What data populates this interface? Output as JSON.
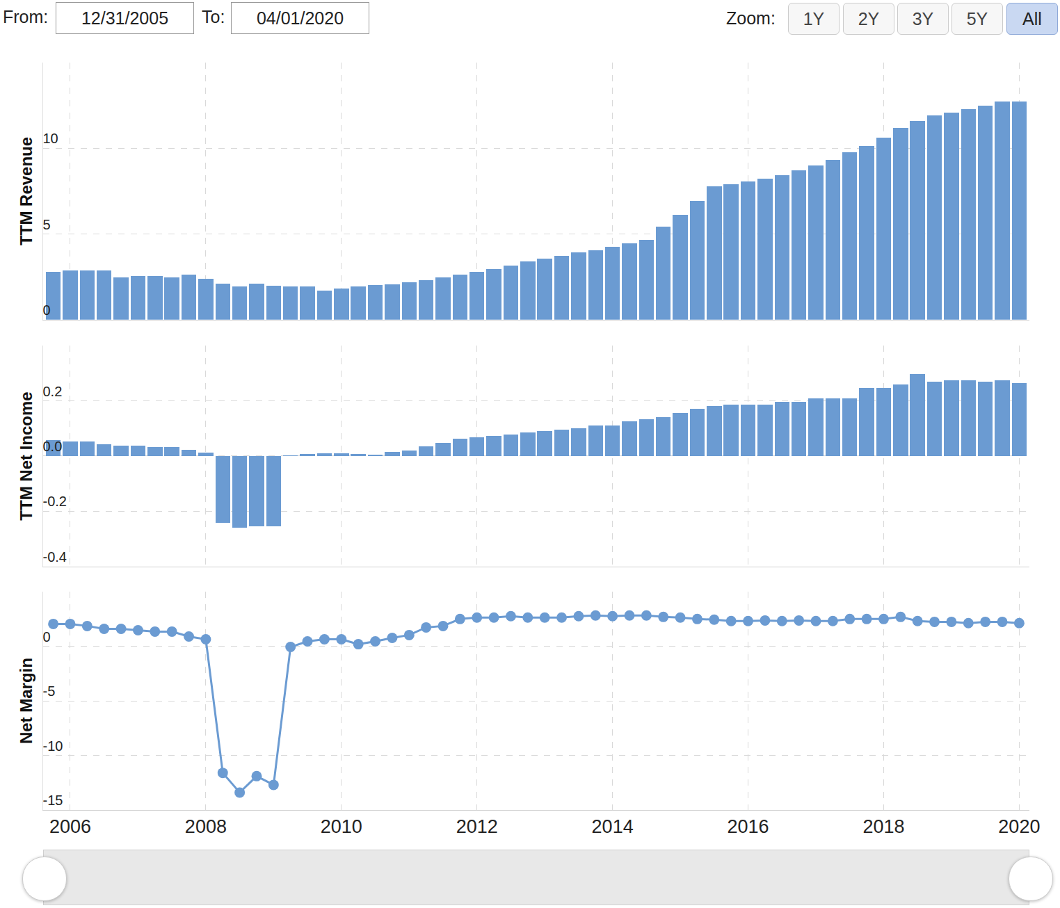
{
  "controls": {
    "from_label": "From:",
    "from": "12/31/2005",
    "to_label": "To:",
    "to": "04/01/2020",
    "zoom_label": "Zoom:",
    "zoom_buttons": [
      "1Y",
      "2Y",
      "3Y",
      "5Y",
      "All"
    ],
    "zoom_selected": "All"
  },
  "chart_data": [
    {
      "type": "bar",
      "ylabel": "TTM Revenue",
      "color": "#6b9bd2",
      "grid": true,
      "tick_labels": "y",
      "x": [
        2005.75,
        2006,
        2006.25,
        2006.5,
        2006.75,
        2007,
        2007.25,
        2007.5,
        2007.75,
        2008,
        2008.25,
        2008.5,
        2008.75,
        2009,
        2009.25,
        2009.5,
        2009.75,
        2010,
        2010.25,
        2010.5,
        2010.75,
        2011,
        2011.25,
        2011.5,
        2011.75,
        2012,
        2012.25,
        2012.5,
        2012.75,
        2013,
        2013.25,
        2013.5,
        2013.75,
        2014,
        2014.25,
        2014.5,
        2014.75,
        2015,
        2015.25,
        2015.5,
        2015.75,
        2016,
        2016.25,
        2016.5,
        2016.75,
        2017,
        2017.25,
        2017.5,
        2017.75,
        2018,
        2018.25,
        2018.5,
        2018.75,
        2019,
        2019.25,
        2019.5,
        2019.75,
        2020
      ],
      "values": [
        2.78,
        2.86,
        2.86,
        2.86,
        2.45,
        2.53,
        2.53,
        2.45,
        2.61,
        2.37,
        2.12,
        1.92,
        2.12,
        1.96,
        1.92,
        1.92,
        1.71,
        1.8,
        1.92,
        2.0,
        2.08,
        2.2,
        2.29,
        2.45,
        2.61,
        2.78,
        2.94,
        3.14,
        3.39,
        3.55,
        3.71,
        3.92,
        4.04,
        4.24,
        4.45,
        4.65,
        5.43,
        6.12,
        6.94,
        7.76,
        7.92,
        8.08,
        8.24,
        8.41,
        8.73,
        8.98,
        9.31,
        9.76,
        10.12,
        10.61,
        11.18,
        11.59,
        11.92,
        12.08,
        12.29,
        12.49,
        12.73,
        12.73
      ],
      "xlim": [
        2005.6,
        2020.15
      ],
      "xticks": [
        2006,
        2008,
        2010,
        2012,
        2014,
        2016,
        2018,
        2020
      ],
      "ylim": [
        0,
        15
      ],
      "yticks": [
        0,
        5,
        10
      ]
    },
    {
      "type": "bar",
      "ylabel": "TTM Net Income",
      "color": "#6b9bd2",
      "grid": true,
      "tick_labels": "y",
      "x": [
        2005.75,
        2006,
        2006.25,
        2006.5,
        2006.75,
        2007,
        2007.25,
        2007.5,
        2007.75,
        2008,
        2008.25,
        2008.5,
        2008.75,
        2009,
        2009.25,
        2009.5,
        2009.75,
        2010,
        2010.25,
        2010.5,
        2010.75,
        2011,
        2011.25,
        2011.5,
        2011.75,
        2012,
        2012.25,
        2012.5,
        2012.75,
        2013,
        2013.25,
        2013.5,
        2013.75,
        2014,
        2014.25,
        2014.5,
        2014.75,
        2015,
        2015.25,
        2015.5,
        2015.75,
        2016,
        2016.25,
        2016.5,
        2016.75,
        2017,
        2017.25,
        2017.5,
        2017.75,
        2018,
        2018.25,
        2018.5,
        2018.75,
        2019,
        2019.25,
        2019.5,
        2019.75,
        2020
      ],
      "values": [
        0.059,
        0.054,
        0.054,
        0.044,
        0.038,
        0.038,
        0.033,
        0.033,
        0.023,
        0.013,
        -0.241,
        -0.259,
        -0.254,
        -0.254,
        0.003,
        0.008,
        0.01,
        0.01,
        0.008,
        0.005,
        0.015,
        0.021,
        0.036,
        0.049,
        0.064,
        0.069,
        0.074,
        0.079,
        0.085,
        0.09,
        0.095,
        0.1,
        0.11,
        0.11,
        0.126,
        0.133,
        0.141,
        0.156,
        0.172,
        0.182,
        0.187,
        0.187,
        0.187,
        0.197,
        0.197,
        0.21,
        0.21,
        0.21,
        0.246,
        0.246,
        0.259,
        0.297,
        0.269,
        0.274,
        0.274,
        0.269,
        0.274,
        0.264
      ],
      "xlim": [
        2005.6,
        2020.15
      ],
      "xticks": [
        2006,
        2008,
        2010,
        2012,
        2014,
        2016,
        2018,
        2020
      ],
      "ylim": [
        -0.4,
        0.4
      ],
      "yticks": [
        -0.4,
        -0.2,
        {
          "value": 0,
          "label": "0.0"
        },
        0.2
      ]
    },
    {
      "type": "line",
      "ylabel": "Net Margin",
      "color": "#6b9bd2",
      "marker": "circle",
      "grid": true,
      "x": [
        2005.75,
        2006,
        2006.25,
        2006.5,
        2006.75,
        2007,
        2007.25,
        2007.5,
        2007.75,
        2008,
        2008.25,
        2008.5,
        2008.75,
        2009,
        2009.25,
        2009.5,
        2009.75,
        2010,
        2010.25,
        2010.5,
        2010.75,
        2011,
        2011.25,
        2011.5,
        2011.75,
        2012,
        2012.25,
        2012.5,
        2012.75,
        2013,
        2013.25,
        2013.5,
        2013.75,
        2014,
        2014.25,
        2014.5,
        2014.75,
        2015,
        2015.25,
        2015.5,
        2015.75,
        2016,
        2016.25,
        2016.5,
        2016.75,
        2017,
        2017.25,
        2017.5,
        2017.75,
        2018,
        2018.25,
        2018.5,
        2018.75,
        2019,
        2019.25,
        2019.5,
        2019.75,
        2020
      ],
      "values": [
        2.05,
        2.05,
        1.86,
        1.6,
        1.6,
        1.47,
        1.35,
        1.35,
        0.9,
        0.64,
        -11.6,
        -13.4,
        -11.9,
        -12.7,
        -0.06,
        0.45,
        0.64,
        0.64,
        0.19,
        0.45,
        0.77,
        1.03,
        1.73,
        1.86,
        2.5,
        2.63,
        2.63,
        2.76,
        2.63,
        2.63,
        2.63,
        2.76,
        2.82,
        2.76,
        2.82,
        2.82,
        2.69,
        2.63,
        2.5,
        2.44,
        2.31,
        2.31,
        2.37,
        2.31,
        2.37,
        2.31,
        2.31,
        2.5,
        2.5,
        2.5,
        2.69,
        2.31,
        2.24,
        2.24,
        2.12,
        2.24,
        2.24,
        2.12
      ],
      "xlim": [
        2005.6,
        2020.15
      ],
      "xticks": [
        2006,
        2008,
        2010,
        2012,
        2014,
        2016,
        2018,
        2020
      ],
      "ylim": [
        -15,
        5
      ],
      "yticks": [
        -15,
        -10,
        -5,
        0
      ]
    }
  ]
}
